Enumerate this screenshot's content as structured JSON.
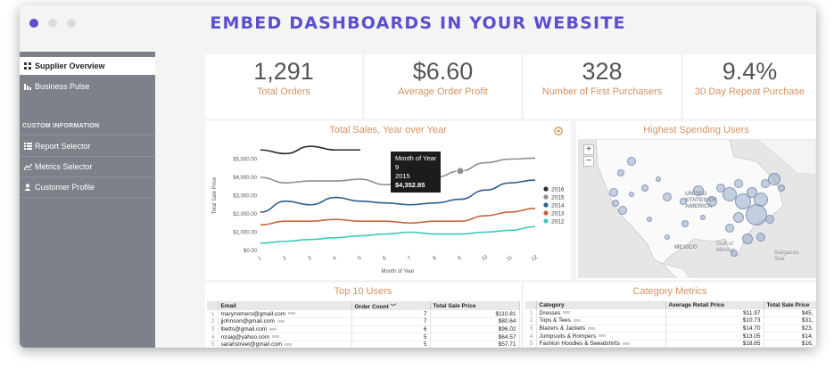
{
  "window": {
    "title": "EMBED DASHBOARDS IN YOUR WEBSITE",
    "dots": [
      "#5a4fcf",
      "#dcdcdc",
      "#dcdcdc"
    ]
  },
  "sidebar": {
    "items": [
      {
        "label": "Supplier Overview",
        "icon": "grid-icon"
      },
      {
        "label": "Business Pulse",
        "icon": "pulse-icon"
      }
    ],
    "section_title": "CUSTOM INFORMATION",
    "custom_items": [
      {
        "label": "Report Selector",
        "icon": "list-icon"
      },
      {
        "label": "Metrics Selector",
        "icon": "line-chart-icon"
      },
      {
        "label": "Customer Profile",
        "icon": "user-icon"
      }
    ]
  },
  "kpis": [
    {
      "value": "1,291",
      "label": "Total Orders"
    },
    {
      "value": "$6.60",
      "label": "Average Order Profit"
    },
    {
      "value": "328",
      "label": "Number of First Purchasers"
    },
    {
      "value": "9.4%",
      "label": "30 Day Repeat Purchase"
    }
  ],
  "sales_chart": {
    "title": "Total Sales, Year over Year",
    "ylabel": "Total Sale Price",
    "xlabel": "Month of Year",
    "settings_icon": "settings-icon",
    "tooltip": {
      "label": "Month of Year",
      "month": "9",
      "year": "2015",
      "value": "$4,352.85"
    }
  },
  "chart_data": {
    "type": "line",
    "title": "Total Sales, Year over Year",
    "xlabel": "Month of Year",
    "ylabel": "Total Sale Price",
    "x": [
      1,
      2,
      3,
      4,
      5,
      6,
      7,
      8,
      9,
      10,
      11,
      12
    ],
    "ylim": [
      0,
      6000
    ],
    "yticks": [
      "$0.00",
      "$1,000.00",
      "$2,000.00",
      "$3,000.00",
      "$4,000.00",
      "$5,000.00"
    ],
    "legend_position": "right",
    "series": [
      {
        "name": "2016",
        "color": "#2b2b2b",
        "values": [
          5500,
          5300,
          5700,
          5500,
          5500,
          null,
          null,
          null,
          null,
          null,
          null,
          null
        ]
      },
      {
        "name": "2015",
        "color": "#8e8e8e",
        "values": [
          4000,
          3700,
          3800,
          3800,
          3900,
          3600,
          3700,
          4000,
          4350,
          4800,
          5000,
          5050
        ]
      },
      {
        "name": "2014",
        "color": "#2e5d8e",
        "values": [
          2100,
          2700,
          2500,
          2900,
          2700,
          2600,
          2500,
          2600,
          2800,
          3300,
          3700,
          3850
        ]
      },
      {
        "name": "2013",
        "color": "#c6663a",
        "values": [
          1400,
          1600,
          1600,
          1700,
          1600,
          1600,
          1500,
          1600,
          1600,
          1900,
          2100,
          2300
        ]
      },
      {
        "name": "2012",
        "color": "#3ac9b8",
        "values": [
          400,
          500,
          600,
          700,
          800,
          900,
          1000,
          900,
          900,
          1000,
          1100,
          1300
        ]
      }
    ]
  },
  "map": {
    "title": "Highest Spending Users",
    "zoom_in": "+",
    "zoom_out": "−",
    "labels": {
      "us": "UNITED STATES OF AMERICA",
      "mexico": "MEXICO",
      "gulf": "Gulf of Mexico",
      "sargasso": "Sargasso Sea"
    }
  },
  "top_users": {
    "title": "Top 10 Users",
    "columns": [
      "Email",
      "Order Count",
      "Total Sale Price"
    ],
    "rows": [
      {
        "idx": "1",
        "email": "marynomero@gmail.com",
        "count": "7",
        "total": "$110.81"
      },
      {
        "idx": "2",
        "email": "jjohnson@gmail.com",
        "count": "7",
        "total": "$80.64"
      },
      {
        "idx": "3",
        "email": "lbetts@gmail.com",
        "count": "6",
        "total": "$96.02"
      },
      {
        "idx": "4",
        "email": "rcraig@yahoo.com",
        "count": "5",
        "total": "$64.57"
      },
      {
        "idx": "5",
        "email": "sarahstreet@gmail.com",
        "count": "5",
        "total": "$57.71"
      }
    ]
  },
  "category_metrics": {
    "title": "Category Metrics",
    "columns": [
      "Category",
      "Average Retail Price",
      "Total Sale Price"
    ],
    "rows": [
      {
        "idx": "1",
        "category": "Dresses",
        "avg": "$11.97",
        "total": "$45,"
      },
      {
        "idx": "2",
        "category": "Tops & Tees",
        "avg": "$10.73",
        "total": "$31,"
      },
      {
        "idx": "3",
        "category": "Blazers & Jackets",
        "avg": "$14.70",
        "total": "$23,"
      },
      {
        "idx": "4",
        "category": "Jumpsuits & Rompers",
        "avg": "$13.05",
        "total": "$14,"
      },
      {
        "idx": "5",
        "category": "Fashion Hoodies & Sweatshirts",
        "avg": "$18.65",
        "total": "$16,"
      }
    ]
  }
}
